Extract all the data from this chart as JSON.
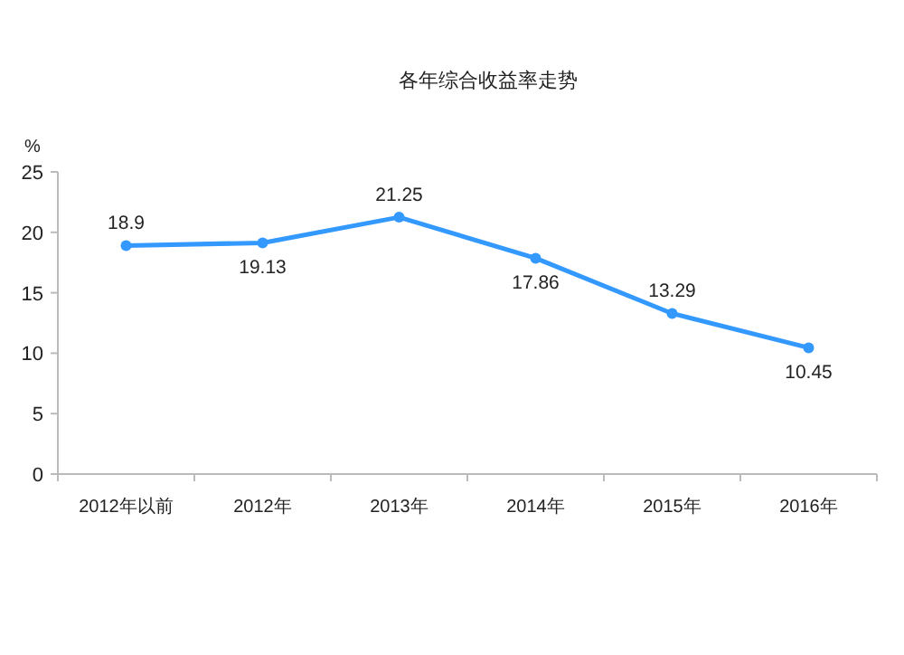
{
  "chart_data": {
    "type": "line",
    "title": "各年综合收益率走势",
    "ylabel": "%",
    "categories": [
      "2012年以前",
      "2012年",
      "2013年",
      "2014年",
      "2015年",
      "2016年"
    ],
    "series": [
      {
        "color": "#3399ff",
        "values": [
          18.9,
          19.13,
          21.25,
          17.86,
          13.29,
          10.45
        ]
      }
    ],
    "ylim": [
      0,
      25
    ],
    "yticks": [
      0,
      5,
      10,
      15,
      20,
      25
    ],
    "grid": false,
    "marker": "circle",
    "line_style": "solid",
    "data_labels": true
  }
}
